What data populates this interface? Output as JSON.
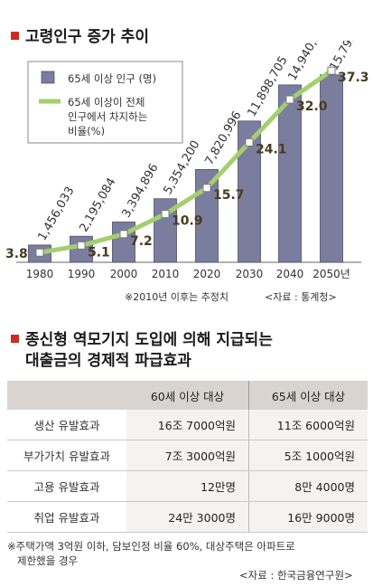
{
  "section1": {
    "title": "고령인구 증가 추이"
  },
  "chart_data": {
    "type": "bar",
    "categories": [
      "1980",
      "1990",
      "2000",
      "2010",
      "2020",
      "2030",
      "2040",
      "2050년"
    ],
    "series": [
      {
        "name": "65세 이상 인구 (명)",
        "type": "bar",
        "color": "#7b7d9f",
        "values": [
          1456033,
          2195084,
          3394896,
          5354200,
          7820996,
          11898705,
          14940981,
          15793405
        ],
        "labels": [
          "1,456,033",
          "2,195,084",
          "3,394,896",
          "5,354,200",
          "7,820,996",
          "11,898,705",
          "14,940,981",
          "15,793,405"
        ]
      },
      {
        "name": "65세 이상이 전체 인구에서 차지하는 비율(%)",
        "type": "line",
        "color": "#a3cf6e",
        "values": [
          3.8,
          5.1,
          7.2,
          10.9,
          15.7,
          24.1,
          32.0,
          37.3
        ],
        "labels": [
          "3.8",
          "5.1",
          "7.2",
          "10.9",
          "15.7",
          "24.1",
          "32.0",
          "37.3"
        ]
      }
    ],
    "legend": {
      "bar": "65세 이상 인구 (명)",
      "line": [
        "65세 이상이 전체",
        "인구에서 차지하는",
        "비율(%)"
      ],
      "placement": "top-left"
    }
  },
  "notes": {
    "estimate": "※2010년 이후는 추정치",
    "source": "<자료 : 통계청>"
  },
  "section2": {
    "title_line1": "종신형 역모기지 도입에 의해 지급되는",
    "title_line2": "대출금의 경제적 파급효과"
  },
  "table": {
    "headers": [
      "",
      "60세 이상 대상",
      "65세 이상 대상"
    ],
    "rows": [
      {
        "label": "생산 유발효과",
        "v60": "16조 7000억원",
        "v65": "11조 6000억원"
      },
      {
        "label": "부가가치 유발효과",
        "v60": "7조 3000억원",
        "v65": "5조 1000억원"
      },
      {
        "label": "고용 유발효과",
        "v60": "12만명",
        "v65": "8만 4000명"
      },
      {
        "label": "취업 유발효과",
        "v60": "24만 3000명",
        "v65": "16만 9000명"
      }
    ]
  },
  "footnote": {
    "line1": "※주택가액 3억원 이하, 담보인정 비율 60%, 대상주택은 아파트로",
    "line2": "제한했을 경우",
    "source": "<자료 : 한국금융연구원>"
  }
}
